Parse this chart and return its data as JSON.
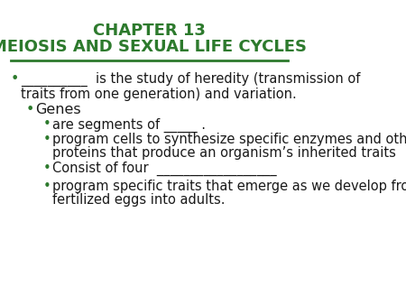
{
  "title_line1": "CHAPTER 13",
  "title_line2": "MEIOSIS AND SEXUAL LIFE CYCLES",
  "title_color": "#2d7a2d",
  "title_fontsize": 13,
  "background_color": "#ffffff",
  "separator_color": "#2d7a2d",
  "bullet_color": "#2d7a2d",
  "text_color": "#1a1a1a",
  "bullet1_text": " __________  is the study of heredity (transmission of\n  traits from one generation) and variation.",
  "bullet2_text": "Genes",
  "sub1_text": "are segments of _____ .",
  "sub2_text": "program cells to synthesize  specific  enzymes  and  other\n     proteins that produce an organism’s  inherited traits",
  "sub3_text": "Consist of four  __________________",
  "sub4_text": "program specific  traits  that  emerge  as we  develop  from\n     fertilized eggs into adults.",
  "font_family": "DejaVu Sans",
  "body_fontsize": 10.5
}
